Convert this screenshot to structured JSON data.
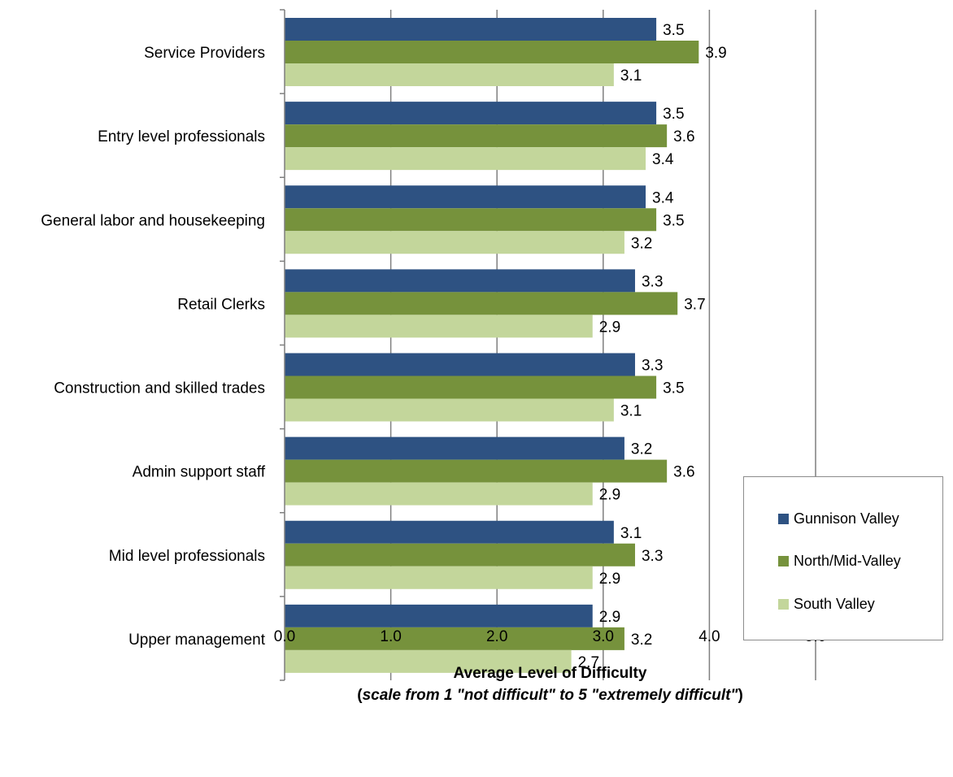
{
  "chart_data": {
    "type": "bar",
    "orientation": "horizontal",
    "categories": [
      "Service Providers",
      "Entry level professionals",
      "General labor and housekeeping",
      "Retail Clerks",
      "Construction and skilled trades",
      "Admin support staff",
      "Mid level professionals",
      "Upper management"
    ],
    "series": [
      {
        "name": "Gunnison Valley",
        "color": "#2e5282",
        "values": [
          3.5,
          3.5,
          3.4,
          3.3,
          3.3,
          3.2,
          3.1,
          2.9
        ],
        "labels": [
          "3.5",
          "3.5",
          "3.4",
          "3.3",
          "3.3",
          "3.2",
          "3.1",
          "2.9"
        ]
      },
      {
        "name": "North/Mid-Valley",
        "color": "#76923c",
        "values": [
          3.9,
          3.6,
          3.5,
          3.7,
          3.5,
          3.6,
          3.3,
          3.2
        ],
        "labels": [
          "3.9",
          "3.6",
          "3.5",
          "3.7",
          "3.5",
          "3.6",
          "3.3",
          "3.2"
        ]
      },
      {
        "name": "South Valley",
        "color": "#c3d69b",
        "values": [
          3.1,
          3.4,
          3.2,
          2.9,
          3.1,
          2.9,
          2.9,
          2.7
        ],
        "labels": [
          "3.1",
          "3.4",
          "3.2",
          "2.9",
          "3.1",
          "2.9",
          "2.9",
          "2.7"
        ]
      }
    ],
    "xlabel": "Average Level of Difficulty",
    "xlabel_sub_open": "(",
    "xlabel_sub_italic": "scale from 1 \"not difficult\" to 5 \"extremely difficult\"",
    "xlabel_sub_close": ")",
    "xlim": [
      0,
      5
    ],
    "xticks": [
      "0.0",
      "1.0",
      "2.0",
      "3.0",
      "4.0",
      "5.0"
    ],
    "grid": "vertical",
    "legend_position": "bottom-right"
  }
}
